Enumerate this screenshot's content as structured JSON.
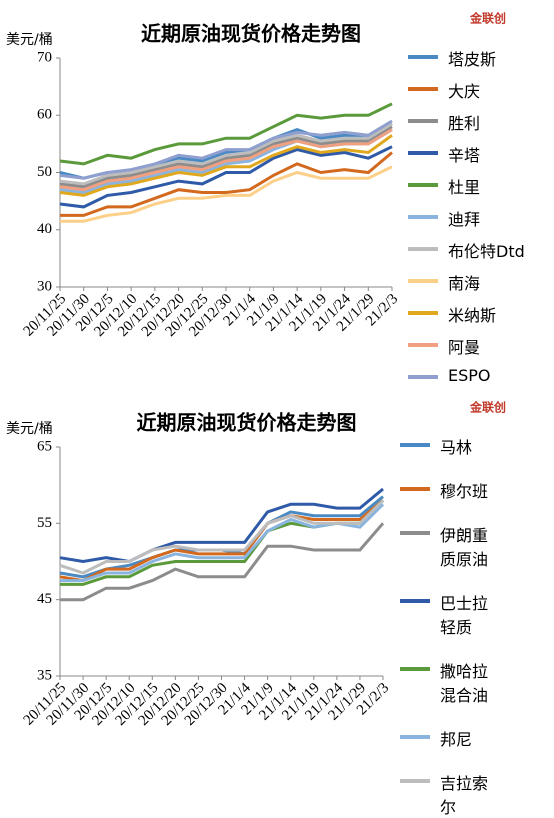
{
  "chart_data": [
    {
      "type": "line",
      "title": "近期原油现货价格走势图",
      "y_label": "美元/桶",
      "logo": "金联创",
      "categories": [
        "20/11/25",
        "20/11/30",
        "20/12/5",
        "20/12/10",
        "20/12/15",
        "20/12/20",
        "20/12/25",
        "20/12/30",
        "21/1/4",
        "21/1/9",
        "21/1/14",
        "21/1/19",
        "21/1/24",
        "21/1/29",
        "21/2/3"
      ],
      "ylim": [
        30,
        70
      ],
      "yticks": [
        30,
        40,
        50,
        60,
        70
      ],
      "series": [
        {
          "name": "塔皮斯",
          "color": "#4a8ac4",
          "values": [
            50,
            49,
            50,
            50,
            51.5,
            52.5,
            52,
            53.5,
            54,
            56,
            57.5,
            56,
            56.5,
            56,
            58.5
          ]
        },
        {
          "name": "大庆",
          "color": "#d2691e",
          "values": [
            42.5,
            42.5,
            44,
            44,
            45.5,
            47,
            46.5,
            46.5,
            47,
            49.5,
            51.5,
            50,
            50.5,
            50,
            53.5
          ]
        },
        {
          "name": "胜利",
          "color": "#8c8c8c",
          "values": [
            48,
            47.5,
            49,
            49.5,
            50.5,
            51.5,
            51,
            52.5,
            53,
            55,
            56,
            55,
            55.5,
            55.5,
            58
          ]
        },
        {
          "name": "辛塔",
          "color": "#2e5aa8",
          "values": [
            44.5,
            44,
            46,
            46.5,
            47.5,
            48.5,
            48,
            50,
            50,
            52.5,
            54,
            53,
            53.5,
            52.5,
            54.5
          ]
        },
        {
          "name": "杜里",
          "color": "#5a9a3a",
          "values": [
            52,
            51.5,
            53,
            52.5,
            54,
            55,
            55,
            56,
            56,
            58,
            60,
            59.5,
            60,
            60,
            62
          ]
        },
        {
          "name": "迪拜",
          "color": "#8ab4e0",
          "values": [
            47,
            46.5,
            48,
            48.5,
            49.5,
            50.5,
            50,
            51.5,
            52,
            54,
            55.5,
            54.5,
            55,
            55,
            57.5
          ]
        },
        {
          "name": "布伦特Dtd",
          "color": "#bdbdbd",
          "values": [
            48.5,
            48,
            49.5,
            50,
            51,
            52,
            51.5,
            53,
            53.5,
            55.5,
            56.5,
            55.5,
            56,
            56,
            58.5
          ]
        },
        {
          "name": "南海",
          "color": "#fdd08a",
          "values": [
            41.5,
            41.5,
            42.5,
            43,
            44.5,
            45.5,
            45.5,
            46,
            46,
            48.5,
            50,
            49,
            49,
            49,
            51
          ]
        },
        {
          "name": "米纳斯",
          "color": "#e0a81e",
          "values": [
            46.5,
            46,
            47.5,
            48,
            49,
            50,
            49.5,
            51,
            51,
            53,
            54.5,
            53.5,
            54,
            53.5,
            56.5
          ]
        },
        {
          "name": "阿曼",
          "color": "#f0a080",
          "values": [
            47.5,
            47,
            48.5,
            49,
            50,
            51,
            50.5,
            52,
            52.5,
            54.5,
            55.5,
            54.5,
            55,
            55,
            57.5
          ]
        },
        {
          "name": "ESPO",
          "color": "#8f9fd0",
          "values": [
            49.5,
            49,
            50,
            50.5,
            51.5,
            53,
            52.5,
            54,
            54,
            56,
            57,
            56.5,
            57,
            56.5,
            59
          ]
        }
      ]
    },
    {
      "type": "line",
      "title": "近期原油现货价格走势图",
      "y_label": "美元/桶",
      "logo": "金联创",
      "categories": [
        "20/11/25",
        "20/11/30",
        "20/12/5",
        "20/12/10",
        "20/12/15",
        "20/12/20",
        "20/12/25",
        "20/12/30",
        "21/1/4",
        "21/1/9",
        "21/1/14",
        "21/1/19",
        "21/1/24",
        "21/1/29",
        "21/2/3"
      ],
      "ylim": [
        35,
        65
      ],
      "yticks": [
        35,
        45,
        55,
        65
      ],
      "series": [
        {
          "name": "马林",
          "color": "#4a8ac4",
          "values": [
            48.5,
            48,
            49,
            49.5,
            50.5,
            51.5,
            51.5,
            51.5,
            51,
            55,
            56.5,
            56,
            56,
            56,
            58.5
          ]
        },
        {
          "name": "穆尔班",
          "color": "#d2691e",
          "values": [
            48,
            47.5,
            49,
            49,
            50.5,
            51.5,
            51,
            51,
            51,
            55,
            56,
            55.5,
            55.5,
            55.5,
            58
          ]
        },
        {
          "name": "伊朗重质原油",
          "color": "#8c8c8c",
          "values": [
            45,
            45,
            46.5,
            46.5,
            47.5,
            49,
            48,
            48,
            48,
            52,
            52,
            51.5,
            51.5,
            51.5,
            55
          ]
        },
        {
          "name": "巴士拉轻质",
          "color": "#2e5aa8",
          "values": [
            50.5,
            50,
            50.5,
            50,
            51.5,
            52.5,
            52.5,
            52.5,
            52.5,
            56.5,
            57.5,
            57.5,
            57,
            57,
            59.5
          ]
        },
        {
          "name": "撒哈拉混合油",
          "color": "#5a9a3a",
          "values": [
            47,
            47,
            48,
            48,
            49.5,
            50,
            50,
            50,
            50,
            54,
            55,
            54.5,
            55,
            55,
            58
          ]
        },
        {
          "name": "邦尼",
          "color": "#8ab4e0",
          "values": [
            47.5,
            47.5,
            48.5,
            48.5,
            50,
            51,
            50.5,
            50.5,
            50.5,
            54,
            55.5,
            54.5,
            55,
            54.5,
            57.5
          ]
        },
        {
          "name": "吉拉索尔",
          "color": "#bdbdbd",
          "values": [
            49.5,
            48.5,
            50,
            50,
            51.5,
            52,
            51.5,
            51.5,
            51.5,
            55,
            56,
            55,
            55,
            55,
            58
          ]
        }
      ]
    }
  ]
}
